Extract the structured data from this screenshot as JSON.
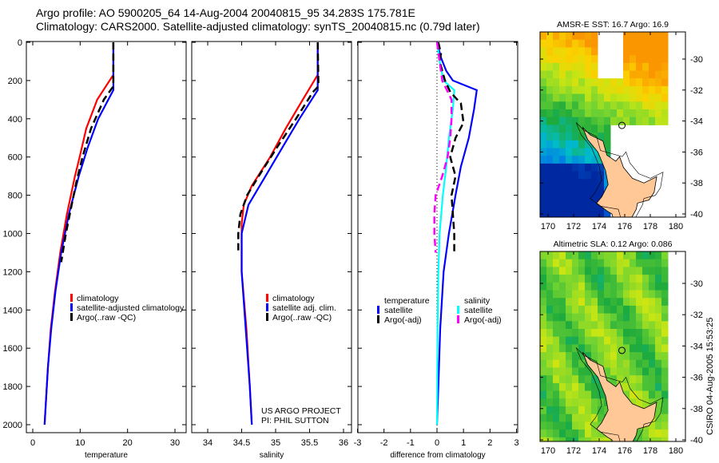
{
  "title_line1": "Argo profile: AO 5900205_64 14-Aug-2004 20040815_95 34.283S 175.781E",
  "title_line2": "Climatology: CARS2000. Satellite-adjusted climatology: synTS_20040815.nc (0.79d later)",
  "side_label": "CSIRO 04-Aug-2005 15:53:25",
  "colors": {
    "climatology": "#ff0000",
    "satellite": "#0000ff",
    "argo": "#000000",
    "sal_satellite": "#00ffff",
    "sal_argo": "#ff00ff",
    "land": "#ffc896"
  },
  "chart_data": [
    {
      "type": "line",
      "id": "temp",
      "xlabel": "temperature",
      "ylabel": "",
      "xlim": [
        -2,
        32
      ],
      "ylim": [
        2000,
        0
      ],
      "xticks": [
        0,
        10,
        20,
        30
      ],
      "yticks": [
        0,
        200,
        400,
        600,
        800,
        1000,
        1200,
        1400,
        1600,
        1800,
        2000
      ],
      "legend": [
        "climatology",
        "satellite-adjusted climatology",
        "Argo(..raw -QC)"
      ],
      "legend_placement": "lower-right",
      "series": [
        {
          "name": "climatology",
          "color": "#ff0000",
          "dash": false,
          "depth": [
            0,
            170,
            300,
            450,
            600,
            700,
            900,
            1100,
            1300,
            1500,
            1700,
            2000
          ],
          "values": [
            17,
            17,
            13.6,
            11.3,
            9.9,
            8.9,
            7.2,
            5.8,
            4.7,
            3.8,
            3.2,
            2.5
          ]
        },
        {
          "name": "satellite-adjusted climatology",
          "color": "#0000ff",
          "dash": false,
          "depth": [
            0,
            250,
            400,
            550,
            700,
            900,
            1100,
            1300,
            1500,
            1700,
            2000
          ],
          "values": [
            17,
            17,
            13.8,
            11.6,
            9.7,
            7.6,
            6.0,
            4.8,
            3.9,
            3.2,
            2.5
          ]
        },
        {
          "name": "Argo(..raw -QC)",
          "color": "#000000",
          "dash": true,
          "depth": [
            0,
            230,
            300,
            450,
            600,
            720,
            850,
            1000,
            1150
          ],
          "values": [
            17,
            17,
            15,
            12.3,
            10.5,
            9.3,
            8.2,
            7.0,
            6.0
          ]
        }
      ]
    },
    {
      "type": "line",
      "id": "sal",
      "xlabel": "salinity",
      "ylabel": "",
      "xlim": [
        33.8,
        36.1
      ],
      "ylim": [
        2000,
        0
      ],
      "xticks": [
        34,
        34.5,
        35,
        35.5,
        36
      ],
      "legend": [
        "climatology",
        "satellite adj. clim.",
        "Argo(..raw -QC)"
      ],
      "legend_placement": "lower-right",
      "annotation": [
        "US ARGO PROJECT",
        "PI: PHIL SUTTON"
      ],
      "series": [
        {
          "name": "climatology",
          "color": "#ff0000",
          "dash": false,
          "depth": [
            0,
            170,
            300,
            450,
            600,
            750,
            850,
            950,
            1200,
            1500,
            1800,
            2000
          ],
          "values": [
            35.62,
            35.62,
            35.4,
            35.15,
            34.92,
            34.65,
            34.53,
            34.5,
            34.5,
            34.57,
            34.62,
            34.65
          ]
        },
        {
          "name": "satellite adj. clim.",
          "color": "#0000ff",
          "dash": false,
          "depth": [
            0,
            250,
            400,
            550,
            700,
            850,
            1000,
            1200,
            1500,
            1800,
            2000
          ],
          "values": [
            35.62,
            35.62,
            35.35,
            35.1,
            34.85,
            34.6,
            34.5,
            34.5,
            34.56,
            34.62,
            34.65
          ]
        },
        {
          "name": "Argo(..raw -QC)",
          "color": "#000000",
          "dash": true,
          "depth": [
            0,
            230,
            260,
            400,
            550,
            700,
            800,
            900,
            1000,
            1100
          ],
          "values": [
            35.62,
            35.63,
            35.55,
            35.3,
            35.02,
            34.75,
            34.58,
            34.48,
            34.45,
            34.45
          ]
        }
      ]
    },
    {
      "type": "line",
      "id": "diff",
      "xlabel": "difference from climatology",
      "ylabel": "",
      "xlim": [
        -3,
        3
      ],
      "ylim": [
        2000,
        0
      ],
      "xticks": [
        -3,
        -2,
        -1,
        0,
        1,
        2,
        3
      ],
      "legend_left": [
        "temperature",
        "satellite",
        "Argo(-adj)"
      ],
      "legend_right": [
        "salinity",
        "satellite",
        "Argo(-adj)"
      ],
      "series": [
        {
          "name": "temperature satellite",
          "color": "#0000ff",
          "dash": false,
          "depth": [
            0,
            80,
            150,
            200,
            250,
            350,
            500,
            650,
            800,
            1000,
            1200,
            1500,
            1800,
            2000
          ],
          "values": [
            0,
            0.15,
            0.35,
            0.6,
            1.5,
            1.4,
            1.2,
            0.9,
            0.7,
            0.45,
            0.25,
            0.12,
            0.05,
            0
          ]
        },
        {
          "name": "salinity satellite",
          "color": "#00ffff",
          "dash": false,
          "depth": [
            0,
            100,
            200,
            250,
            350,
            500,
            650,
            800,
            1000,
            1200,
            1500,
            2000
          ],
          "values": [
            0,
            0.1,
            0.25,
            0.65,
            0.6,
            0.45,
            0.35,
            0.22,
            0.1,
            0.05,
            0.02,
            0
          ]
        },
        {
          "name": "temperature Argo(-adj)",
          "color": "#000000",
          "dash": true,
          "depth": [
            0,
            60,
            100,
            200,
            260,
            320,
            420,
            500,
            600,
            700,
            800,
            900,
            1000,
            1100
          ],
          "values": [
            0.05,
            0.15,
            0.1,
            0.3,
            0.5,
            0.9,
            1.0,
            0.7,
            0.5,
            0.7,
            0.55,
            0.6,
            0.65,
            0.65
          ]
        },
        {
          "name": "salinity Argo(-adj)",
          "color": "#ff00ff",
          "dash": true,
          "depth": [
            0,
            100,
            200,
            300,
            400,
            500,
            600,
            700,
            800,
            900,
            1000,
            1100
          ],
          "values": [
            0,
            0.1,
            0.2,
            0.55,
            0.55,
            0.5,
            0.4,
            0.2,
            -0.05,
            -0.1,
            -0.1,
            -0.05
          ]
        }
      ]
    }
  ],
  "maps": [
    {
      "title": "AMSR-E SST: 16.7 Argo: 16.9",
      "xticks": [
        "170",
        "172",
        "174",
        "176",
        "178",
        "180"
      ],
      "yticks": [
        "-30",
        "-32",
        "-34",
        "-36",
        "-38",
        "-40"
      ],
      "lon_range": [
        169.5,
        182
      ],
      "lat_range": [
        -29.2,
        -40.5
      ],
      "field": "sst"
    },
    {
      "title": "Altimetric SLA: 0.12 Argo: 0.086",
      "xticks": [
        "170",
        "172",
        "174",
        "176",
        "178",
        "180"
      ],
      "yticks": [
        "-30",
        "-32",
        "-34",
        "-36",
        "-38",
        "-40"
      ],
      "lon_range": [
        169.5,
        182
      ],
      "lat_range": [
        -28.5,
        -40.6
      ],
      "field": "sla"
    }
  ],
  "station": {
    "lon": 175.781,
    "lat": -34.283
  }
}
